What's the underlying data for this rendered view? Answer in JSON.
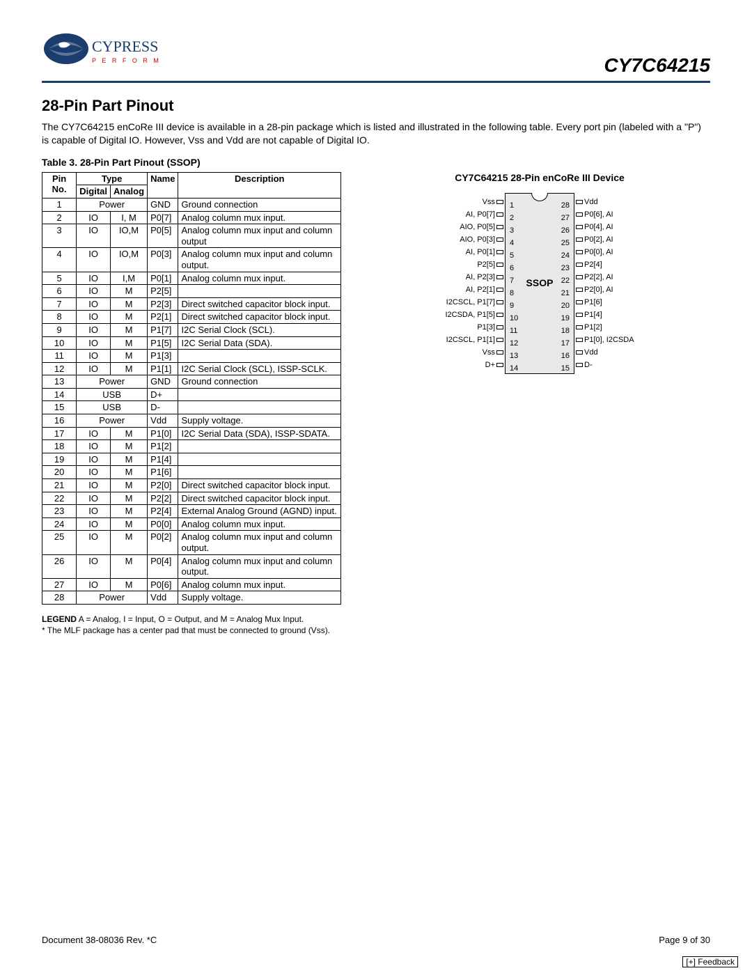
{
  "header": {
    "brand": "CYPRESS",
    "tagline": "P E R F O R M",
    "part_number": "CY7C64215"
  },
  "section_title": "28-Pin Part Pinout",
  "intro": "The CY7C64215 enCoRe III device is available in a 28-pin package which is listed and illustrated in the following table. Every port pin (labeled with a \"P\") is capable of Digital IO. However, Vss and Vdd are not capable of Digital IO.",
  "table_caption": "Table 3.  28-Pin Part Pinout (SSOP)",
  "table": {
    "headers": {
      "pin": "Pin No.",
      "type": "Type",
      "digital": "Digital",
      "analog": "Analog",
      "name": "Name",
      "desc": "Description"
    },
    "rows": [
      {
        "no": "1",
        "digital": "Power",
        "analog": "",
        "name": "GND",
        "desc": "Ground connection",
        "merge": true
      },
      {
        "no": "2",
        "digital": "IO",
        "analog": "I, M",
        "name": "P0[7]",
        "desc": "Analog column mux input."
      },
      {
        "no": "3",
        "digital": "IO",
        "analog": "IO,M",
        "name": "P0[5]",
        "desc": "Analog column mux input and column output"
      },
      {
        "no": "4",
        "digital": "IO",
        "analog": "IO,M",
        "name": "P0[3]",
        "desc": "Analog column mux input and column output."
      },
      {
        "no": "5",
        "digital": "IO",
        "analog": "I,M",
        "name": "P0[1]",
        "desc": "Analog column mux input."
      },
      {
        "no": "6",
        "digital": "IO",
        "analog": "M",
        "name": "P2[5]",
        "desc": ""
      },
      {
        "no": "7",
        "digital": "IO",
        "analog": "M",
        "name": "P2[3]",
        "desc": "Direct switched capacitor block input."
      },
      {
        "no": "8",
        "digital": "IO",
        "analog": "M",
        "name": "P2[1]",
        "desc": "Direct switched capacitor block input."
      },
      {
        "no": "9",
        "digital": "IO",
        "analog": "M",
        "name": "P1[7]",
        "desc": "I2C Serial Clock (SCL)."
      },
      {
        "no": "10",
        "digital": "IO",
        "analog": "M",
        "name": "P1[5]",
        "desc": "I2C Serial Data (SDA)."
      },
      {
        "no": "11",
        "digital": "IO",
        "analog": "M",
        "name": "P1[3]",
        "desc": ""
      },
      {
        "no": "12",
        "digital": "IO",
        "analog": "M",
        "name": "P1[1]",
        "desc": "I2C Serial Clock (SCL), ISSP-SCLK."
      },
      {
        "no": "13",
        "digital": "Power",
        "analog": "",
        "name": "GND",
        "desc": "Ground connection",
        "merge": true
      },
      {
        "no": "14",
        "digital": "USB",
        "analog": "",
        "name": "D+",
        "desc": "",
        "merge": true
      },
      {
        "no": "15",
        "digital": "USB",
        "analog": "",
        "name": "D-",
        "desc": "",
        "merge": true
      },
      {
        "no": "16",
        "digital": "Power",
        "analog": "",
        "name": "Vdd",
        "desc": "Supply voltage.",
        "merge": true
      },
      {
        "no": "17",
        "digital": "IO",
        "analog": "M",
        "name": "P1[0]",
        "desc": "I2C Serial Data (SDA), ISSP-SDATA."
      },
      {
        "no": "18",
        "digital": "IO",
        "analog": "M",
        "name": "P1[2]",
        "desc": ""
      },
      {
        "no": "19",
        "digital": "IO",
        "analog": "M",
        "name": "P1[4]",
        "desc": ""
      },
      {
        "no": "20",
        "digital": "IO",
        "analog": "M",
        "name": "P1[6]",
        "desc": ""
      },
      {
        "no": "21",
        "digital": "IO",
        "analog": "M",
        "name": "P2[0]",
        "desc": "Direct switched capacitor block input."
      },
      {
        "no": "22",
        "digital": "IO",
        "analog": "M",
        "name": "P2[2]",
        "desc": "Direct switched capacitor block input."
      },
      {
        "no": "23",
        "digital": "IO",
        "analog": "M",
        "name": "P2[4]",
        "desc": "External Analog Ground (AGND) input."
      },
      {
        "no": "24",
        "digital": "IO",
        "analog": "M",
        "name": "P0[0]",
        "desc": "Analog column mux input."
      },
      {
        "no": "25",
        "digital": "IO",
        "analog": "M",
        "name": "P0[2]",
        "desc": "Analog column mux input and column output."
      },
      {
        "no": "26",
        "digital": "IO",
        "analog": "M",
        "name": "P0[4]",
        "desc": "Analog column mux input and column output."
      },
      {
        "no": "27",
        "digital": "IO",
        "analog": "M",
        "name": "P0[6]",
        "desc": "Analog column mux input."
      },
      {
        "no": "28",
        "digital": "Power",
        "analog": "",
        "name": "Vdd",
        "desc": "Supply voltage.",
        "merge": true
      }
    ]
  },
  "legend_bold": "LEGEND",
  "legend_text": " A = Analog, I = Input, O = Output, and M = Analog Mux Input.",
  "legend_note": "* The MLF package has a center pad that must be connected to ground (Vss).",
  "diagram": {
    "title": "CY7C64215 28-Pin enCoRe III Device",
    "package_label": "SSOP",
    "left": [
      {
        "n": "1",
        "l": "Vss"
      },
      {
        "n": "2",
        "l": "AI, P0[7]"
      },
      {
        "n": "3",
        "l": "AIO, P0[5]"
      },
      {
        "n": "4",
        "l": "AIO, P0[3]"
      },
      {
        "n": "5",
        "l": "AI, P0[1]"
      },
      {
        "n": "6",
        "l": "P2[5]"
      },
      {
        "n": "7",
        "l": "AI, P2[3]"
      },
      {
        "n": "8",
        "l": "AI, P2[1]"
      },
      {
        "n": "9",
        "l": "I2CSCL, P1[7]"
      },
      {
        "n": "10",
        "l": "I2CSDA, P1[5]"
      },
      {
        "n": "11",
        "l": "P1[3]"
      },
      {
        "n": "12",
        "l": "I2CSCL, P1[1]"
      },
      {
        "n": "13",
        "l": "Vss"
      },
      {
        "n": "14",
        "l": "D+"
      }
    ],
    "right": [
      {
        "n": "28",
        "l": "Vdd"
      },
      {
        "n": "27",
        "l": "P0[6], AI"
      },
      {
        "n": "26",
        "l": "P0[4], AI"
      },
      {
        "n": "25",
        "l": "P0[2], AI"
      },
      {
        "n": "24",
        "l": "P0[0], AI"
      },
      {
        "n": "23",
        "l": "P2[4]"
      },
      {
        "n": "22",
        "l": "P2[2], AI"
      },
      {
        "n": "21",
        "l": "P2[0], AI"
      },
      {
        "n": "20",
        "l": "P1[6]"
      },
      {
        "n": "19",
        "l": "P1[4]"
      },
      {
        "n": "18",
        "l": "P1[2]"
      },
      {
        "n": "17",
        "l": "P1[0], I2CSDA"
      },
      {
        "n": "16",
        "l": "Vdd"
      },
      {
        "n": "15",
        "l": "D-"
      }
    ]
  },
  "footer": {
    "doc": "Document 38-08036 Rev. *C",
    "page": "Page 9 of 30",
    "feedback": "[+] Feedback"
  },
  "colors": {
    "rule": "#1a3d6d",
    "chip_fill": "#e8e8e8"
  }
}
